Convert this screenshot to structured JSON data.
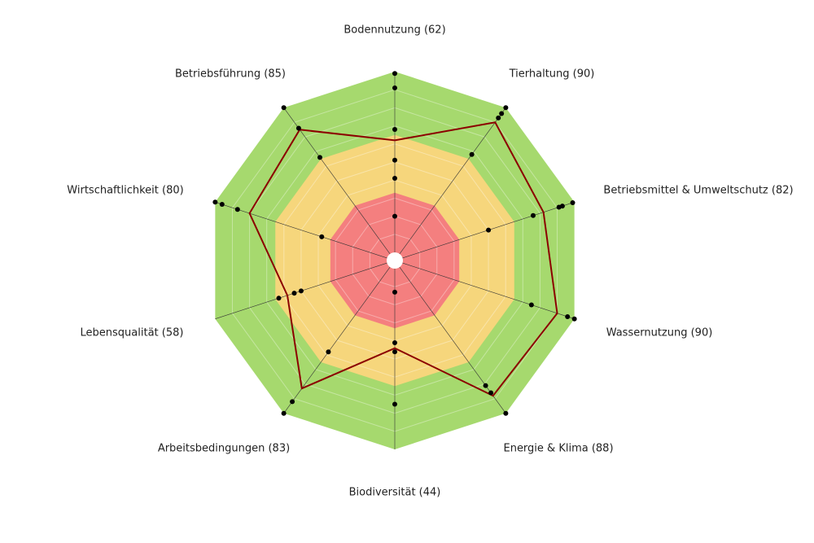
{
  "chart_data": {
    "type": "radar",
    "categories": [
      "Bodennutzung (62)",
      "Tierhaltung (90)",
      "Betriebsmittel & Umweltschutz (82)",
      "Wassernutzung (90)",
      "Energie & Klima (88)",
      "Biodiversität (44)",
      "Arbeitsbedingungen (83)",
      "Lebensqualität (58)",
      "Wirtschaftlichkeit (80)",
      "Betriebsführung (85)"
    ],
    "values": [
      62,
      90,
      82,
      90,
      88,
      44,
      83,
      58,
      80,
      85
    ],
    "color": "#8b0000",
    "others": [
      [
        99,
        91,
        68,
        51,
        41,
        20
      ],
      [
        100,
        96,
        93,
        68
      ],
      [
        99,
        93,
        91,
        76,
        50
      ],
      [
        100,
        96,
        75
      ],
      [
        100,
        86,
        81
      ],
      [
        13,
        41,
        46,
        75
      ],
      [
        100,
        92,
        58
      ],
      [
        63,
        54,
        50
      ],
      [
        100,
        96,
        87,
        38
      ],
      [
        100,
        86,
        66
      ]
    ],
    "others_color": "#000000",
    "bands": [
      {
        "from": 0,
        "to": 33,
        "color": "#f47f7f"
      },
      {
        "from": 33,
        "to": 65,
        "color": "#f6d67c"
      },
      {
        "from": 65,
        "to": 100,
        "color": "#a6d96e"
      }
    ],
    "rlim": [
      0,
      100
    ],
    "rticks": [
      10,
      20,
      30,
      40,
      50,
      60,
      70,
      80,
      90
    ]
  }
}
